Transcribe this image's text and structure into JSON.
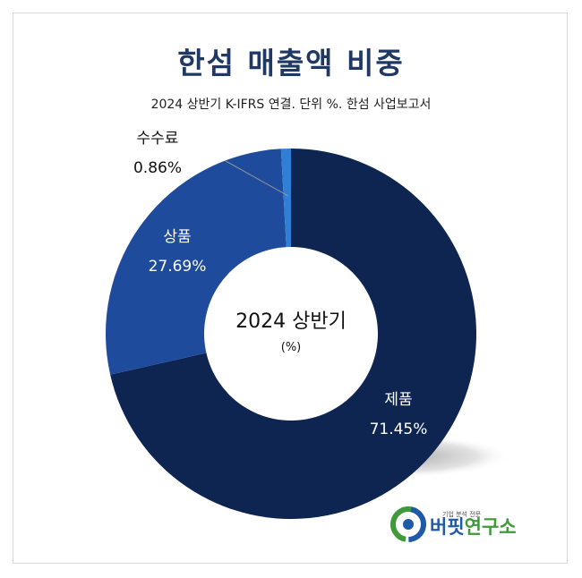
{
  "page": {
    "title": "한섬 매출액 비중",
    "subtitle": "2024 상반기 K-IFRS 연결. 단위 %. 한섬 사업보고서",
    "center_label": "2024 상반기",
    "center_unit": "(%)"
  },
  "chart_data": {
    "type": "pie",
    "title": "한섬 매출액 비중",
    "subtitle": "2024 상반기 K-IFRS 연결. 단위 %. 한섬 사업보고서",
    "donut": true,
    "unit": "%",
    "start": "12 o'clock, clockwise",
    "slices": [
      {
        "label": "제품",
        "value": 71.45,
        "display": "71.45%",
        "color": "#0d2550"
      },
      {
        "label": "상품",
        "value": 27.69,
        "display": "27.69%",
        "color": "#1f4b9c"
      },
      {
        "label": "수수료",
        "value": 0.86,
        "display": "0.86%",
        "color": "#2f7fd6"
      }
    ]
  },
  "logo": {
    "tagline": "기업 분석 전문",
    "name_part1": "버핏",
    "name_part2": "연구소",
    "colors": {
      "blue": "#1e5aa8",
      "green": "#3f9a3a"
    }
  }
}
